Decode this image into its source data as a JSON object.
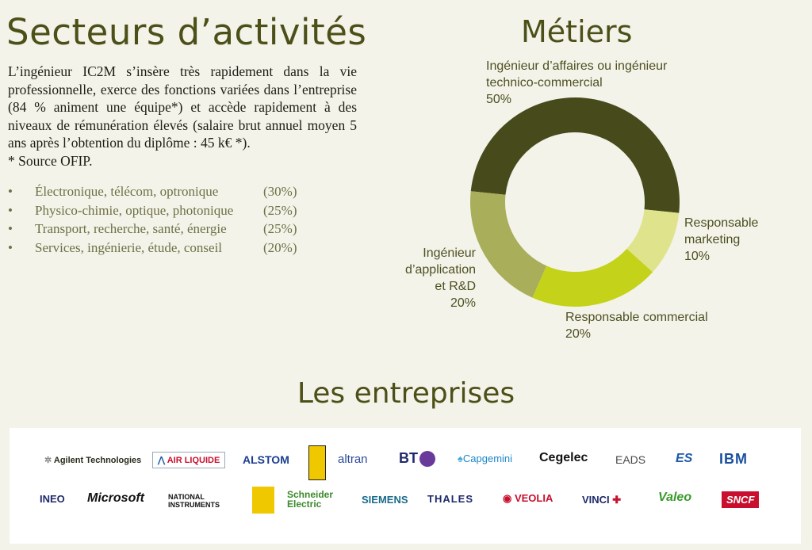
{
  "left": {
    "title": "Secteurs d’activités",
    "intro": "L’ingénieur IC2M s’insère très rapidement dans la vie professionnelle, exerce des fonctions variées dans l’entreprise (84 % animent une équipe*) et accède rapidement à des niveaux de rémunération élevés (salaire brut annuel moyen 5 ans après l’obtention du diplôme : 45 k€ *).",
    "source": "* Source OFIP.",
    "sectors": [
      {
        "label": "Électronique, télécom, optronique",
        "value": "(30%)"
      },
      {
        "label": "Physico-chimie, optique, photonique",
        "value": "(25%)"
      },
      {
        "label": "Transport, recherche, santé, énergie",
        "value": "(25%)"
      },
      {
        "label": "Services, ingénierie, étude, conseil",
        "value": "(20%)"
      }
    ]
  },
  "metiers_title": "Métiers",
  "chart_data": {
    "type": "pie",
    "categories": [
      "Ingénieur d’affaires ou ingénieur technico-commercial",
      "Responsable marketing",
      "Responsable commercial",
      "Ingénieur d’application et R&D"
    ],
    "values": [
      50,
      10,
      20,
      20
    ],
    "colors": [
      "#474b1c",
      "#dfe38c",
      "#c4d31a",
      "#a9ae5a"
    ],
    "labels": [
      {
        "lines": [
          "Ingénieur d’affaires ou ingénieur",
          "technico-commercial"
        ],
        "pct": "50%"
      },
      {
        "lines": [
          "Responsable",
          "marketing"
        ],
        "pct": "10%"
      },
      {
        "lines": [
          "Responsable commercial"
        ],
        "pct": "20%"
      },
      {
        "lines": [
          "Ingénieur",
          "d’application",
          "et R&D"
        ],
        "pct": "20%"
      }
    ]
  },
  "entreprises_title": "Les entreprises",
  "logos": [
    {
      "name": "Agilent Technologies",
      "color": "#1a1a1a"
    },
    {
      "name": "AIR LIQUIDE",
      "color": "#c8102e"
    },
    {
      "name": "ALSTOM",
      "color": "#1b3d8f"
    },
    {
      "name": "altran",
      "color": "#2a4b9b"
    },
    {
      "name": "BT",
      "color": "#1f2a6b"
    },
    {
      "name": "Capgemini",
      "color": "#1e88c8"
    },
    {
      "name": "Cegelec",
      "color": "#111111"
    },
    {
      "name": "EADS",
      "color": "#4a4a4a"
    },
    {
      "name": "ES",
      "color": "#1c5aa8"
    },
    {
      "name": "IBM",
      "color": "#1a4fa0"
    },
    {
      "name": "INEO",
      "color": "#1f2a6b"
    },
    {
      "name": "Microsoft",
      "color": "#111111"
    },
    {
      "name": "NATIONAL INSTRUMENTS",
      "color": "#111111"
    },
    {
      "name": "Schneider Electric",
      "color": "#3a8a2a"
    },
    {
      "name": "SIEMENS",
      "color": "#1a6b8a"
    },
    {
      "name": "THALES",
      "color": "#1f2a6b"
    },
    {
      "name": "VEOLIA",
      "color": "#c8102e"
    },
    {
      "name": "VINCI",
      "color": "#1f2a6b"
    },
    {
      "name": "Valeo",
      "color": "#3a9a2a"
    },
    {
      "name": "SNCF",
      "color": "#ffffff"
    }
  ]
}
